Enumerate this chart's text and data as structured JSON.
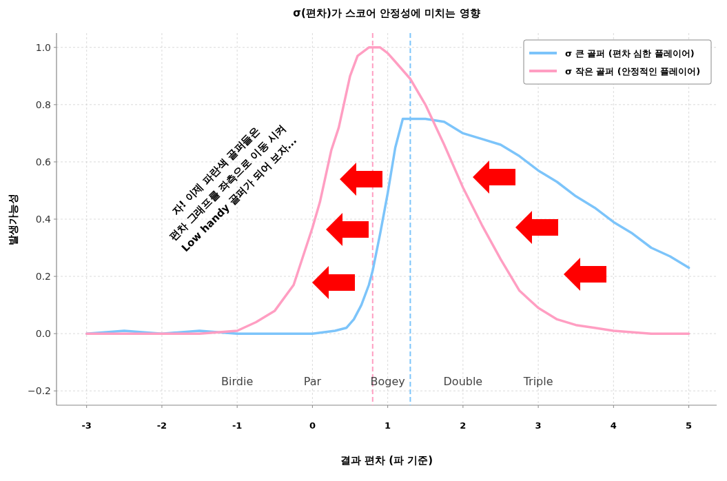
{
  "chart_data": {
    "type": "line",
    "title": "σ(편차)가 스코어 안정성에 미치는 영향",
    "xlabel": "결과 편차 (파 기준)",
    "ylabel": "발생가능성",
    "xlim": [
      -3.4,
      5.37
    ],
    "ylim": [
      -0.25,
      1.05
    ],
    "xticks": [
      {
        "value": -3,
        "label": "-3"
      },
      {
        "value": -2,
        "label": "-2"
      },
      {
        "value": -1,
        "label": "-1"
      },
      {
        "value": 0,
        "label": "0"
      },
      {
        "value": 1,
        "label": "1"
      },
      {
        "value": 2,
        "label": "2"
      },
      {
        "value": 3,
        "label": "3"
      },
      {
        "value": 4,
        "label": "4"
      },
      {
        "value": 5,
        "label": "5"
      }
    ],
    "yticks": [
      {
        "value": -0.2,
        "label": "−0.2"
      },
      {
        "value": 0,
        "label": "0.0"
      },
      {
        "value": 0.2,
        "label": "0.2"
      },
      {
        "value": 0.4,
        "label": "0.4"
      },
      {
        "value": 0.6,
        "label": "0.6"
      },
      {
        "value": 0.8,
        "label": "0.8"
      },
      {
        "value": 1.0,
        "label": "1.0"
      }
    ],
    "grid": true,
    "legend": "top right",
    "series": [
      {
        "name": "σ 큰 골퍼 (편차 심한 플레이어)",
        "color": "#7cc4fa",
        "x": [
          -3,
          -2.5,
          -2,
          -1.5,
          -1,
          -0.5,
          0,
          0.3,
          0.45,
          0.55,
          0.65,
          0.75,
          0.8,
          0.9,
          1.0,
          1.1,
          1.2,
          1.3,
          1.5,
          1.75,
          2.0,
          2.25,
          2.5,
          2.75,
          3.0,
          3.25,
          3.5,
          3.75,
          4.0,
          4.25,
          4.5,
          4.75,
          5.0
        ],
        "values": [
          0,
          0.01,
          0,
          0.01,
          0,
          0,
          0,
          0.01,
          0.02,
          0.05,
          0.1,
          0.17,
          0.22,
          0.35,
          0.49,
          0.65,
          0.75,
          0.75,
          0.75,
          0.74,
          0.7,
          0.68,
          0.66,
          0.62,
          0.57,
          0.53,
          0.48,
          0.44,
          0.39,
          0.35,
          0.3,
          0.27,
          0.23
        ]
      },
      {
        "name": "σ 작은 골퍼 (안정적인 플레이어)",
        "color": "#ff9ec2",
        "x": [
          -3,
          -2.5,
          -2,
          -1.5,
          -1,
          -0.75,
          -0.5,
          -0.25,
          0,
          0.1,
          0.25,
          0.35,
          0.5,
          0.6,
          0.75,
          0.9,
          1.0,
          1.1,
          1.3,
          1.5,
          1.75,
          2.0,
          2.25,
          2.5,
          2.75,
          3.0,
          3.25,
          3.5,
          3.75,
          4.0,
          4.5,
          5.0
        ],
        "values": [
          0,
          0,
          0,
          0,
          0.01,
          0.04,
          0.08,
          0.17,
          0.37,
          0.46,
          0.64,
          0.72,
          0.9,
          0.97,
          1.0,
          1.0,
          0.98,
          0.95,
          0.89,
          0.8,
          0.66,
          0.51,
          0.38,
          0.26,
          0.15,
          0.09,
          0.05,
          0.03,
          0.02,
          0.01,
          0,
          0
        ]
      }
    ],
    "ref_lines": [
      {
        "axis": "x",
        "value": 0.8,
        "color": "#ff9ec2",
        "line_style": "dashed"
      },
      {
        "axis": "x",
        "value": 1.3,
        "color": "#7cc4fa",
        "line_style": "dashed"
      }
    ],
    "annotations": [
      "Birdie",
      "Par",
      "Bogey",
      "Double",
      "Triple",
      "자! 이제 파란색 골퍼들은",
      "편차 그래프를 좌측으로 이동 시켜",
      "Low handy 골퍼가 되어 보자..."
    ]
  }
}
